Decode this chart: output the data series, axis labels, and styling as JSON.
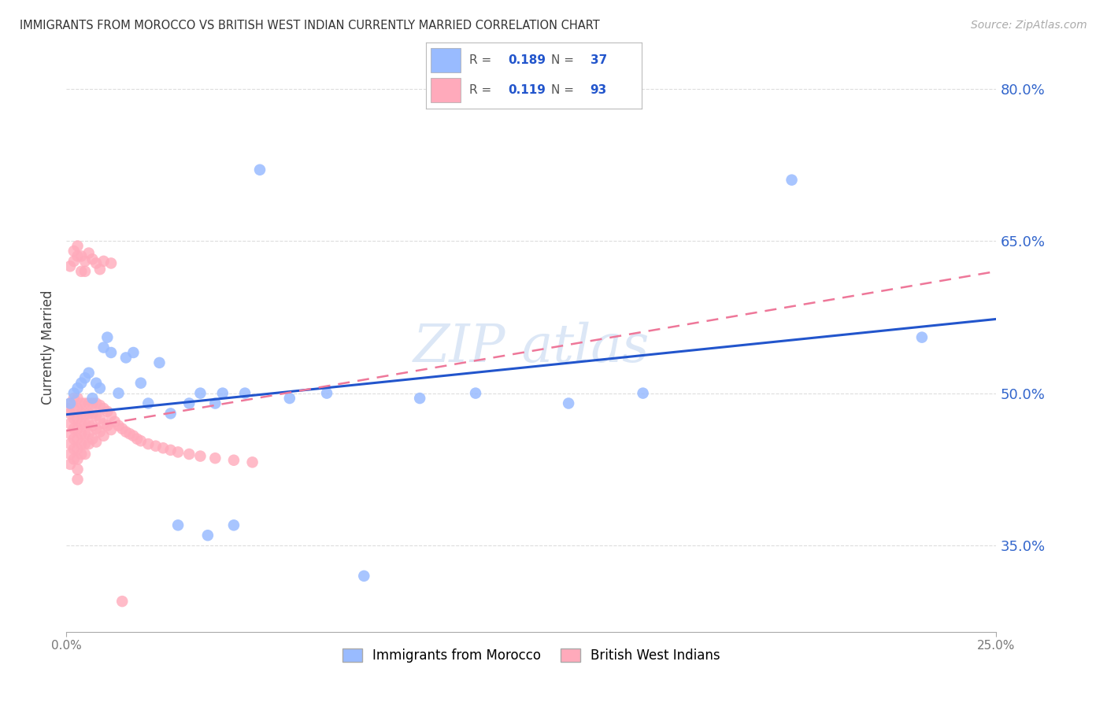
{
  "title": "IMMIGRANTS FROM MOROCCO VS BRITISH WEST INDIAN CURRENTLY MARRIED CORRELATION CHART",
  "source": "Source: ZipAtlas.com",
  "ylabel": "Currently Married",
  "xmin": 0.0,
  "xmax": 0.25,
  "ymin": 0.265,
  "ymax": 0.825,
  "yticks": [
    0.35,
    0.5,
    0.65,
    0.8
  ],
  "ytick_labels": [
    "35.0%",
    "50.0%",
    "65.0%",
    "80.0%"
  ],
  "morocco_color": "#99bbff",
  "bwi_color": "#ffaabb",
  "trend_blue_color": "#2255cc",
  "trend_pink_color": "#ee7799",
  "grid_color": "#dddddd",
  "axis_label_color": "#3366cc",
  "morocco_N": 37,
  "bwi_N": 93,
  "morocco_R": "0.189",
  "bwi_R": "0.119",
  "morocco_N_str": "37",
  "bwi_N_str": "93",
  "blue_trend_x0": 0.0,
  "blue_trend_x1": 0.25,
  "blue_trend_y0": 0.479,
  "blue_trend_y1": 0.573,
  "pink_trend_x0": 0.0,
  "pink_trend_x1": 0.25,
  "pink_trend_y0": 0.463,
  "pink_trend_y1": 0.62,
  "morocco_x": [
    0.001,
    0.002,
    0.003,
    0.004,
    0.005,
    0.006,
    0.007,
    0.008,
    0.009,
    0.01,
    0.011,
    0.012,
    0.014,
    0.016,
    0.018,
    0.02,
    0.022,
    0.025,
    0.028,
    0.03,
    0.033,
    0.036,
    0.038,
    0.04,
    0.042,
    0.045,
    0.048,
    0.052,
    0.06,
    0.07,
    0.08,
    0.095,
    0.11,
    0.135,
    0.155,
    0.195,
    0.23
  ],
  "morocco_y": [
    0.49,
    0.5,
    0.505,
    0.51,
    0.515,
    0.52,
    0.495,
    0.51,
    0.505,
    0.545,
    0.555,
    0.54,
    0.5,
    0.535,
    0.54,
    0.51,
    0.49,
    0.53,
    0.48,
    0.37,
    0.49,
    0.5,
    0.36,
    0.49,
    0.5,
    0.37,
    0.5,
    0.72,
    0.495,
    0.5,
    0.32,
    0.495,
    0.5,
    0.49,
    0.5,
    0.71,
    0.555
  ],
  "bwi_x": [
    0.0005,
    0.001,
    0.001,
    0.001,
    0.001,
    0.001,
    0.001,
    0.001,
    0.002,
    0.002,
    0.002,
    0.002,
    0.002,
    0.002,
    0.002,
    0.003,
    0.003,
    0.003,
    0.003,
    0.003,
    0.003,
    0.003,
    0.003,
    0.003,
    0.004,
    0.004,
    0.004,
    0.004,
    0.004,
    0.004,
    0.005,
    0.005,
    0.005,
    0.005,
    0.005,
    0.005,
    0.006,
    0.006,
    0.006,
    0.006,
    0.006,
    0.007,
    0.007,
    0.007,
    0.007,
    0.008,
    0.008,
    0.008,
    0.008,
    0.009,
    0.009,
    0.009,
    0.01,
    0.01,
    0.01,
    0.011,
    0.011,
    0.012,
    0.012,
    0.013,
    0.014,
    0.015,
    0.016,
    0.017,
    0.018,
    0.019,
    0.02,
    0.022,
    0.024,
    0.026,
    0.028,
    0.03,
    0.033,
    0.036,
    0.04,
    0.045,
    0.05,
    0.001,
    0.002,
    0.002,
    0.003,
    0.003,
    0.004,
    0.004,
    0.005,
    0.005,
    0.006,
    0.007,
    0.008,
    0.009,
    0.01,
    0.012,
    0.015
  ],
  "bwi_y": [
    0.485,
    0.49,
    0.48,
    0.47,
    0.46,
    0.45,
    0.44,
    0.43,
    0.495,
    0.485,
    0.475,
    0.465,
    0.455,
    0.445,
    0.435,
    0.495,
    0.485,
    0.475,
    0.465,
    0.455,
    0.445,
    0.435,
    0.425,
    0.415,
    0.49,
    0.48,
    0.47,
    0.46,
    0.45,
    0.44,
    0.49,
    0.48,
    0.47,
    0.46,
    0.45,
    0.44,
    0.49,
    0.48,
    0.47,
    0.46,
    0.45,
    0.49,
    0.48,
    0.468,
    0.455,
    0.49,
    0.478,
    0.465,
    0.452,
    0.488,
    0.475,
    0.462,
    0.485,
    0.47,
    0.458,
    0.482,
    0.468,
    0.478,
    0.464,
    0.472,
    0.468,
    0.465,
    0.462,
    0.46,
    0.458,
    0.455,
    0.453,
    0.45,
    0.448,
    0.446,
    0.444,
    0.442,
    0.44,
    0.438,
    0.436,
    0.434,
    0.432,
    0.625,
    0.64,
    0.63,
    0.645,
    0.635,
    0.62,
    0.635,
    0.63,
    0.62,
    0.638,
    0.632,
    0.628,
    0.622,
    0.63,
    0.628,
    0.295
  ]
}
